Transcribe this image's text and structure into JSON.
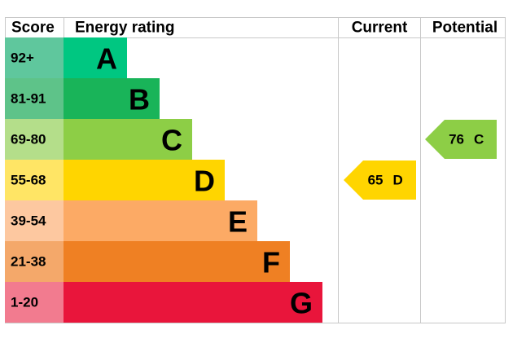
{
  "header": {
    "score": "Score",
    "rating": "Energy rating",
    "current": "Current",
    "potential": "Potential"
  },
  "bands": [
    {
      "score": "92+",
      "letter": "A",
      "color": "#00c781",
      "score_color": "#5fc79d"
    },
    {
      "score": "81-91",
      "letter": "B",
      "color": "#19b459",
      "score_color": "#5ec389"
    },
    {
      "score": "69-80",
      "letter": "C",
      "color": "#8dce46",
      "score_color": "#b4de8a"
    },
    {
      "score": "55-68",
      "letter": "D",
      "color": "#ffd500",
      "score_color": "#ffe565"
    },
    {
      "score": "39-54",
      "letter": "E",
      "color": "#fcaa65",
      "score_color": "#fdc8a0"
    },
    {
      "score": "21-38",
      "letter": "F",
      "color": "#ef8023",
      "score_color": "#f4a86a"
    },
    {
      "score": "1-20",
      "letter": "G",
      "color": "#e9153b",
      "score_color": "#f27b8f"
    }
  ],
  "current": {
    "score": 65,
    "rating": "D",
    "color": "#ffd500"
  },
  "potential": {
    "score": 76,
    "rating": "C",
    "color": "#8dce46"
  }
}
